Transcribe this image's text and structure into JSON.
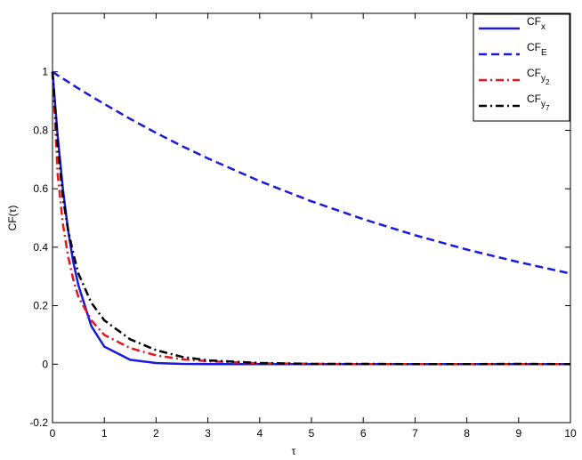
{
  "chart_data": {
    "type": "line",
    "xlabel": "τ",
    "ylabel": "CF(τ)",
    "x": [
      0,
      0.1,
      0.2,
      0.3,
      0.4,
      0.5,
      0.75,
      1,
      1.5,
      2,
      2.5,
      3,
      4,
      5,
      6,
      7,
      8,
      9,
      10
    ],
    "series": [
      {
        "name": "CFx",
        "color": "#1a1adc",
        "linestyle": "-",
        "values": [
          1,
          0.78,
          0.6,
          0.46,
          0.35,
          0.27,
          0.13,
          0.06,
          0.015,
          0.004,
          0.001,
          0,
          0,
          0,
          0,
          0,
          0,
          0,
          0
        ]
      },
      {
        "name": "CFE",
        "color": "#1a1adc",
        "linestyle": "--",
        "values": [
          1,
          0.988,
          0.977,
          0.966,
          0.954,
          0.943,
          0.916,
          0.89,
          0.839,
          0.791,
          0.746,
          0.704,
          0.626,
          0.557,
          0.496,
          0.441,
          0.392,
          0.349,
          0.31
        ]
      },
      {
        "name": "CFy2",
        "color": "#e8141e",
        "linestyle": "-.",
        "values": [
          1,
          0.65,
          0.48,
          0.37,
          0.29,
          0.23,
          0.15,
          0.1,
          0.055,
          0.03,
          0.017,
          0.01,
          0.003,
          0.001,
          0,
          0,
          0,
          0,
          0
        ]
      },
      {
        "name": "CFy7",
        "color": "#000000",
        "linestyle": "-.",
        "values": [
          1,
          0.75,
          0.57,
          0.46,
          0.38,
          0.31,
          0.21,
          0.15,
          0.085,
          0.048,
          0.025,
          0.013,
          0.004,
          0.001,
          0.001,
          0,
          0,
          0.001,
          0
        ]
      }
    ],
    "xlim": [
      0,
      10
    ],
    "xticks": [
      0,
      1,
      2,
      3,
      4,
      5,
      6,
      7,
      8,
      9,
      10
    ],
    "ylim": [
      -0.2,
      1.2
    ],
    "yticks": [
      -0.2,
      0,
      0.2,
      0.4,
      0.6,
      0.8,
      1
    ],
    "grid": false,
    "legend": "upper right"
  }
}
